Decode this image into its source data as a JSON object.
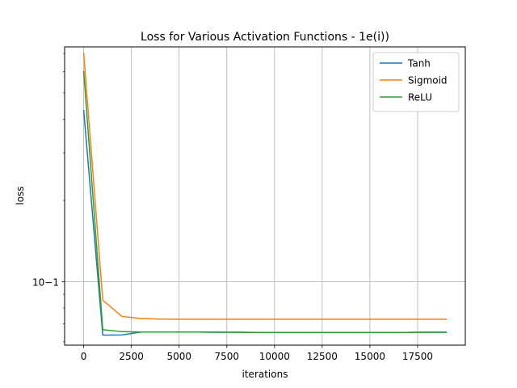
{
  "chart_data": {
    "type": "line",
    "title": "Loss for Various Activation Functions - 1e(i))",
    "xlabel": "iterations",
    "ylabel": "loss",
    "x": [
      0,
      1000,
      2000,
      3000,
      4000,
      5000,
      6000,
      7000,
      8000,
      9000,
      10000,
      11000,
      12000,
      13000,
      14000,
      15000,
      16000,
      17000,
      18000,
      19000
    ],
    "series": [
      {
        "name": "Tanh",
        "color": "#1f77b4",
        "values": [
          0.43,
          0.0635,
          0.0636,
          0.0652,
          0.0652,
          0.0652,
          0.0652,
          0.0651,
          0.0651,
          0.065,
          0.065,
          0.065,
          0.065,
          0.065,
          0.065,
          0.065,
          0.065,
          0.065,
          0.0651,
          0.0651
        ]
      },
      {
        "name": "Sigmoid",
        "color": "#ff7f0e",
        "values": [
          0.7,
          0.0855,
          0.0745,
          0.0732,
          0.0728,
          0.0727,
          0.0727,
          0.0727,
          0.0727,
          0.0727,
          0.0727,
          0.0727,
          0.0727,
          0.0727,
          0.0727,
          0.0727,
          0.0727,
          0.0727,
          0.0727,
          0.0727
        ]
      },
      {
        "name": "ReLU",
        "color": "#2ca02c",
        "values": [
          0.6,
          0.0665,
          0.0654,
          0.0652,
          0.0652,
          0.0652,
          0.0652,
          0.0651,
          0.0651,
          0.065,
          0.065,
          0.065,
          0.065,
          0.065,
          0.065,
          0.065,
          0.065,
          0.065,
          0.0651,
          0.0651
        ]
      }
    ],
    "xlim": [
      -1000,
      20000
    ],
    "ylim": [
      0.0583,
      0.74
    ],
    "yscale": "log",
    "x_ticks": [
      0,
      2500,
      5000,
      7500,
      10000,
      12500,
      15000,
      17500
    ],
    "x_tick_labels": [
      "0",
      "2500",
      "5000",
      "7500",
      "10000",
      "12500",
      "15000",
      "17500"
    ],
    "y_ticks": [
      0.1
    ],
    "y_tick_labels": [
      "10−1"
    ],
    "grid": true,
    "legend_position": "upper-right"
  }
}
